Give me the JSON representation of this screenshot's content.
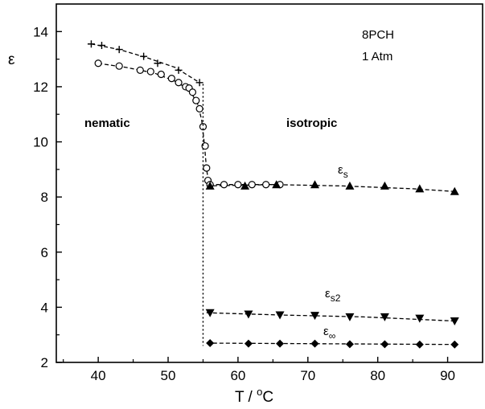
{
  "chart_data": {
    "type": "scatter",
    "xlabel_main": "T / ",
    "xlabel_sup": "o",
    "xlabel_tail": "C",
    "ylabel": "ε",
    "xlim": [
      34,
      95
    ],
    "ylim": [
      2,
      15
    ],
    "xticks": [
      40,
      50,
      60,
      70,
      80,
      90
    ],
    "yticks": [
      2,
      4,
      6,
      8,
      10,
      12,
      14
    ],
    "transition_x": 55,
    "annotations": {
      "compound": "8PCH",
      "pressure": "1 Atm",
      "nematic": "nematic",
      "isotropic": "isotropic"
    },
    "series": [
      {
        "marker": "plus",
        "points": [
          [
            39,
            13.55
          ],
          [
            40.5,
            13.5
          ],
          [
            43,
            13.35
          ],
          [
            46.5,
            13.1
          ],
          [
            48.5,
            12.85
          ],
          [
            51.5,
            12.6
          ],
          [
            54.5,
            12.15
          ]
        ],
        "curve": [
          [
            39,
            13.55
          ],
          [
            43,
            13.35
          ],
          [
            47,
            13.05
          ],
          [
            51,
            12.7
          ],
          [
            54.5,
            12.15
          ]
        ]
      },
      {
        "marker": "circle",
        "points": [
          [
            40,
            12.85
          ],
          [
            43,
            12.75
          ],
          [
            46,
            12.6
          ],
          [
            47.5,
            12.55
          ],
          [
            49,
            12.45
          ],
          [
            50.5,
            12.3
          ],
          [
            51.5,
            12.15
          ],
          [
            52.5,
            12.0
          ],
          [
            53,
            11.95
          ],
          [
            53.5,
            11.8
          ],
          [
            54,
            11.5
          ],
          [
            54.5,
            11.2
          ],
          [
            55,
            10.55
          ],
          [
            55.3,
            9.85
          ],
          [
            55.5,
            9.05
          ],
          [
            55.7,
            8.6
          ],
          [
            56,
            8.45
          ],
          [
            58,
            8.45
          ],
          [
            60,
            8.45
          ],
          [
            62,
            8.45
          ],
          [
            64,
            8.45
          ],
          [
            66,
            8.45
          ]
        ],
        "curve": [
          [
            40,
            12.85
          ],
          [
            44,
            12.7
          ],
          [
            48,
            12.5
          ],
          [
            51,
            12.2
          ],
          [
            53,
            11.9
          ],
          [
            54.2,
            11.4
          ],
          [
            54.8,
            10.8
          ],
          [
            55.2,
            9.9
          ],
          [
            55.5,
            9.0
          ],
          [
            55.8,
            8.55
          ],
          [
            56.5,
            8.45
          ],
          [
            66,
            8.45
          ]
        ]
      },
      {
        "name": "εs",
        "label_base": "ε",
        "label_sub": "s",
        "marker": "triangle-up",
        "points": [
          [
            56,
            8.4
          ],
          [
            61,
            8.4
          ],
          [
            65.5,
            8.45
          ],
          [
            71,
            8.45
          ],
          [
            76,
            8.4
          ],
          [
            81,
            8.4
          ],
          [
            86,
            8.3
          ],
          [
            91,
            8.2
          ]
        ],
        "curve": [
          [
            55.5,
            8.4
          ],
          [
            65,
            8.45
          ],
          [
            75,
            8.4
          ],
          [
            85,
            8.3
          ],
          [
            91,
            8.2
          ]
        ]
      },
      {
        "name": "εs2",
        "label_base": "ε",
        "label_sub": "s2",
        "marker": "triangle-down",
        "points": [
          [
            56,
            3.8
          ],
          [
            61.5,
            3.75
          ],
          [
            66,
            3.72
          ],
          [
            71,
            3.7
          ],
          [
            76,
            3.65
          ],
          [
            81,
            3.65
          ],
          [
            86,
            3.6
          ],
          [
            91,
            3.5
          ]
        ],
        "curve": [
          [
            55.5,
            3.8
          ],
          [
            66,
            3.72
          ],
          [
            78,
            3.65
          ],
          [
            91,
            3.5
          ]
        ]
      },
      {
        "name": "ε∞",
        "label_base": "ε",
        "label_sub": "∞",
        "marker": "diamond",
        "points": [
          [
            56,
            2.7
          ],
          [
            61.5,
            2.68
          ],
          [
            66,
            2.68
          ],
          [
            71,
            2.68
          ],
          [
            76,
            2.66
          ],
          [
            81,
            2.66
          ],
          [
            86,
            2.65
          ],
          [
            91,
            2.65
          ]
        ],
        "curve": [
          [
            55.5,
            2.7
          ],
          [
            91,
            2.65
          ]
        ]
      }
    ]
  }
}
